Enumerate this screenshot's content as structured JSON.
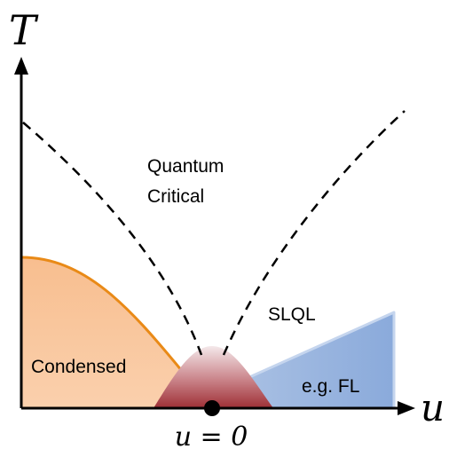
{
  "axes": {
    "y_label": "T",
    "x_label": "u",
    "origin_label": "u = 0"
  },
  "regions": {
    "quantum_critical": {
      "line1": "Quantum",
      "line2": "Critical"
    },
    "slql": "SLQL",
    "condensed": "Condensed",
    "fl": "e.g. FL"
  },
  "colors": {
    "condensed_fill": "#f9c59b",
    "condensed_edge": "#e98a17",
    "dome_top": "#f3e6e8",
    "dome_bottom": "#9e2f35",
    "fl_fill": "#8faedc",
    "fl_edge": "#b8cbe8",
    "axis": "#000000"
  }
}
